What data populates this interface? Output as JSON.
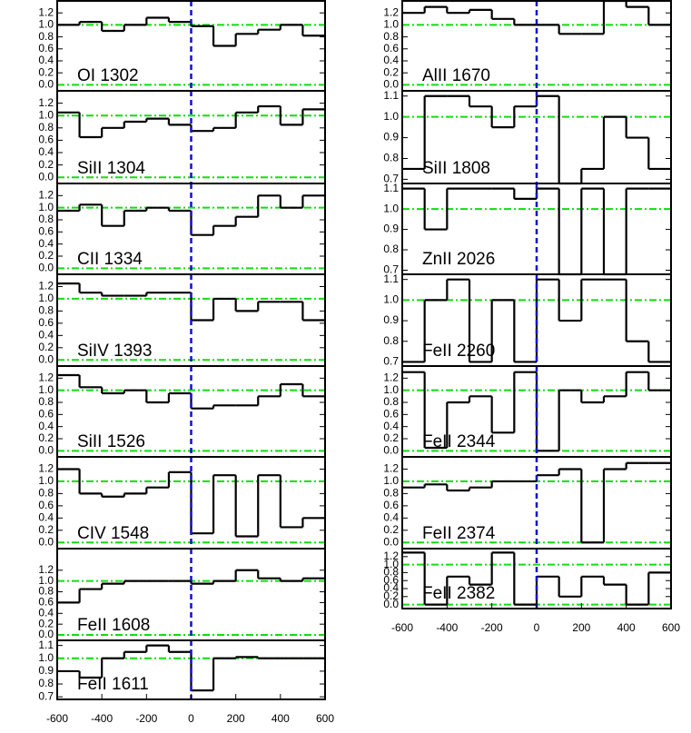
{
  "chart_data": [
    {
      "type": "step",
      "label": "OI 1302",
      "xlim": [
        -600,
        600
      ],
      "ylim": [
        -0.1,
        1.4
      ],
      "hlines": [
        0,
        1
      ],
      "vline": 0,
      "yticks": [
        {
          "value": 0,
          "label": "0.0"
        },
        0.2,
        0.4,
        0.6,
        0.8,
        {
          "value": 1,
          "label": "1.0"
        },
        1.2
      ],
      "x": [
        -550,
        -450,
        -350,
        -250,
        -150,
        -50,
        50,
        150,
        250,
        350,
        450,
        550
      ],
      "values": [
        1.0,
        1.05,
        0.9,
        1.0,
        1.12,
        1.05,
        0.98,
        0.65,
        0.85,
        0.92,
        1.0,
        0.82
      ]
    },
    {
      "type": "step",
      "label": "SiII 1304",
      "xlim": [
        -600,
        600
      ],
      "ylim": [
        -0.1,
        1.4
      ],
      "hlines": [
        0,
        1
      ],
      "vline": 0,
      "yticks": [
        {
          "value": 0,
          "label": "0.0"
        },
        0.2,
        0.4,
        0.6,
        0.8,
        {
          "value": 1,
          "label": "1.0"
        },
        1.2
      ],
      "x": [
        -550,
        -450,
        -350,
        -250,
        -150,
        -50,
        50,
        150,
        250,
        350,
        450,
        550
      ],
      "values": [
        1.05,
        0.65,
        0.8,
        0.9,
        0.95,
        0.85,
        0.75,
        0.8,
        1.05,
        1.15,
        0.85,
        1.1
      ]
    },
    {
      "type": "step",
      "label": "CII 1334",
      "xlim": [
        -600,
        600
      ],
      "ylim": [
        -0.1,
        1.4
      ],
      "hlines": [
        0,
        1
      ],
      "vline": 0,
      "yticks": [
        {
          "value": 0,
          "label": "0.0"
        },
        0.2,
        0.4,
        0.6,
        0.8,
        {
          "value": 1,
          "label": "1.0"
        },
        1.2
      ],
      "x": [
        -550,
        -450,
        -350,
        -250,
        -150,
        -50,
        50,
        150,
        250,
        350,
        450,
        550
      ],
      "values": [
        0.95,
        1.05,
        0.7,
        0.95,
        1.0,
        0.95,
        0.55,
        0.7,
        0.85,
        1.2,
        1.0,
        1.2
      ]
    },
    {
      "type": "step",
      "label": "SiIV 1393",
      "xlim": [
        -600,
        600
      ],
      "ylim": [
        -0.1,
        1.4
      ],
      "hlines": [
        0,
        1
      ],
      "vline": 0,
      "yticks": [
        {
          "value": 0,
          "label": "0.0"
        },
        0.2,
        0.4,
        0.6,
        0.8,
        {
          "value": 1,
          "label": "1.0"
        },
        1.2
      ],
      "x": [
        -550,
        -450,
        -350,
        -250,
        -150,
        -50,
        50,
        150,
        250,
        350,
        450,
        550
      ],
      "values": [
        1.25,
        1.1,
        1.05,
        1.05,
        1.1,
        1.1,
        0.65,
        1.0,
        0.8,
        0.95,
        0.95,
        0.65
      ]
    },
    {
      "type": "step",
      "label": "SiII 1526",
      "xlim": [
        -600,
        600
      ],
      "ylim": [
        -0.1,
        1.4
      ],
      "hlines": [
        0,
        1
      ],
      "vline": 0,
      "yticks": [
        {
          "value": 0,
          "label": "0.0"
        },
        0.2,
        0.4,
        0.6,
        0.8,
        {
          "value": 1,
          "label": "1.0"
        },
        1.2
      ],
      "x": [
        -550,
        -450,
        -350,
        -250,
        -150,
        -50,
        50,
        150,
        250,
        350,
        450,
        550
      ],
      "values": [
        1.25,
        1.05,
        0.95,
        1.0,
        0.8,
        0.95,
        0.7,
        0.75,
        0.75,
        0.9,
        1.1,
        0.9
      ]
    },
    {
      "type": "step",
      "label": "CIV 1548",
      "xlim": [
        -600,
        600
      ],
      "ylim": [
        -0.1,
        1.4
      ],
      "hlines": [
        0,
        1
      ],
      "vline": 0,
      "yticks": [
        {
          "value": 0,
          "label": "0.0"
        },
        0.2,
        0.4,
        0.6,
        0.8,
        {
          "value": 1,
          "label": "1.0"
        },
        1.2
      ],
      "x": [
        -550,
        -450,
        -350,
        -250,
        -150,
        -50,
        50,
        150,
        250,
        350,
        450,
        550
      ],
      "values": [
        1.2,
        0.8,
        0.75,
        0.8,
        0.9,
        1.15,
        0.15,
        1.1,
        0.1,
        1.1,
        0.25,
        0.4
      ]
    },
    {
      "type": "step",
      "label": "FeII 1608",
      "xlim": [
        -600,
        600
      ],
      "ylim": [
        -0.1,
        1.6
      ],
      "hlines": [
        0,
        1
      ],
      "vline": 0,
      "yticks": [
        {
          "value": 0,
          "label": "0.0"
        },
        0.2,
        0.4,
        0.6,
        0.8,
        {
          "value": 1,
          "label": "1.0"
        },
        1.2
      ],
      "x": [
        -550,
        -450,
        -350,
        -250,
        -150,
        -50,
        50,
        150,
        250,
        350,
        450,
        550
      ],
      "values": [
        0.6,
        0.85,
        0.95,
        1.0,
        1.0,
        1.0,
        0.95,
        1.0,
        1.2,
        1.05,
        1.0,
        1.05
      ]
    },
    {
      "type": "step",
      "label": "FeII 1611",
      "xlim": [
        -600,
        600
      ],
      "ylim": [
        0.68,
        1.14
      ],
      "hlines": [
        1
      ],
      "vline": 0,
      "yticks": [
        0.7,
        0.8,
        0.9,
        {
          "value": 1,
          "label": "1.0"
        },
        1.1
      ],
      "x": [
        -550,
        -450,
        -350,
        -250,
        -150,
        -50,
        50,
        150,
        250,
        350,
        450,
        550
      ],
      "values": [
        0.9,
        0.85,
        1.0,
        1.05,
        1.1,
        1.05,
        0.75,
        1.0,
        1.01,
        1.0,
        1.0,
        1.0
      ],
      "xticks": [
        -600,
        -400,
        -200,
        0,
        200,
        400,
        600
      ]
    },
    {
      "type": "step",
      "label": "AlII 1670",
      "xlim": [
        -600,
        600
      ],
      "ylim": [
        -0.1,
        1.4
      ],
      "hlines": [
        0,
        1
      ],
      "vline": 0,
      "yticks": [
        {
          "value": 0,
          "label": "0.0"
        },
        0.2,
        0.4,
        0.6,
        0.8,
        {
          "value": 1,
          "label": "1.0"
        },
        1.2
      ],
      "x": [
        -550,
        -450,
        -350,
        -250,
        -150,
        -50,
        50,
        150,
        250,
        350,
        450,
        550
      ],
      "values": [
        1.2,
        1.3,
        1.2,
        1.25,
        1.1,
        1.0,
        1.0,
        0.85,
        0.85,
        1.4,
        1.3,
        1.0
      ]
    },
    {
      "type": "step",
      "label": "SiII 1808",
      "xlim": [
        -600,
        600
      ],
      "ylim": [
        0.68,
        1.125
      ],
      "hlines": [
        1
      ],
      "vline": 0,
      "yticks": [
        0.7,
        0.8,
        0.9,
        {
          "value": 1,
          "label": "1.0"
        },
        1.1
      ],
      "x": [
        -550,
        -450,
        -350,
        -250,
        -150,
        -50,
        50,
        150,
        250,
        350,
        450,
        550
      ],
      "values": [
        0.75,
        1.1,
        1.1,
        1.05,
        0.95,
        1.05,
        1.1,
        0.68,
        0.75,
        1.0,
        0.9,
        0.75
      ]
    },
    {
      "type": "step",
      "label": "ZnII 2026",
      "xlim": [
        -600,
        600
      ],
      "ylim": [
        0.68,
        1.125
      ],
      "hlines": [
        1
      ],
      "vline": 0,
      "yticks": [
        0.7,
        0.8,
        0.9,
        {
          "value": 1,
          "label": "1.0"
        },
        1.1
      ],
      "x": [
        -550,
        -450,
        -350,
        -250,
        -150,
        -50,
        50,
        150,
        250,
        350,
        450,
        550
      ],
      "values": [
        1.1,
        0.9,
        1.1,
        1.1,
        1.1,
        1.05,
        1.1,
        0.68,
        1.1,
        0.68,
        1.1,
        1.1
      ]
    },
    {
      "type": "step",
      "label": "FeII 2260",
      "xlim": [
        -600,
        600
      ],
      "ylim": [
        0.68,
        1.125
      ],
      "hlines": [
        1
      ],
      "vline": 0,
      "yticks": [
        0.7,
        0.8,
        0.9,
        {
          "value": 1,
          "label": "1.0"
        },
        1.1
      ],
      "x": [
        -550,
        -450,
        -350,
        -250,
        -150,
        -50,
        50,
        150,
        250,
        350,
        450,
        550
      ],
      "values": [
        0.7,
        1.0,
        1.1,
        0.7,
        1.0,
        0.7,
        1.1,
        0.9,
        1.1,
        1.1,
        0.8,
        0.7
      ]
    },
    {
      "type": "step",
      "label": "FeII 2344",
      "xlim": [
        -600,
        600
      ],
      "ylim": [
        -0.1,
        1.4
      ],
      "hlines": [
        0,
        1
      ],
      "vline": 0,
      "yticks": [
        {
          "value": 0,
          "label": "0.0"
        },
        0.2,
        0.4,
        0.6,
        0.8,
        {
          "value": 1,
          "label": "1.0"
        },
        1.2
      ],
      "x": [
        -550,
        -450,
        -350,
        -250,
        -150,
        -50,
        50,
        150,
        250,
        350,
        450,
        550
      ],
      "values": [
        1.3,
        0.05,
        0.8,
        0.9,
        0.3,
        1.3,
        0.0,
        1.0,
        0.8,
        0.9,
        1.3,
        1.0
      ]
    },
    {
      "type": "step",
      "label": "FeII 2374",
      "xlim": [
        -600,
        600
      ],
      "ylim": [
        -0.1,
        1.4
      ],
      "hlines": [
        0,
        1
      ],
      "vline": 0,
      "yticks": [
        {
          "value": 0,
          "label": "0.0"
        },
        0.2,
        0.4,
        0.6,
        0.8,
        {
          "value": 1,
          "label": "1.0"
        },
        1.2
      ],
      "x": [
        -550,
        -450,
        -350,
        -250,
        -150,
        -50,
        50,
        150,
        250,
        350,
        450,
        550
      ],
      "values": [
        0.9,
        0.95,
        0.85,
        0.9,
        1.0,
        1.0,
        1.1,
        1.2,
        0.0,
        1.2,
        1.3,
        1.3
      ]
    },
    {
      "type": "step",
      "label": "FeII 2382",
      "xlim": [
        -600,
        600
      ],
      "ylim": [
        -0.1,
        1.4
      ],
      "hlines": [
        0,
        1
      ],
      "vline": 0,
      "yticks": [
        {
          "value": 0,
          "label": "0.0"
        },
        0.2,
        0.4,
        0.6,
        0.8,
        {
          "value": 1,
          "label": "1.0"
        },
        1.2
      ],
      "x": [
        -550,
        -450,
        -350,
        -250,
        -150,
        -50,
        50,
        150,
        250,
        350,
        450,
        550
      ],
      "values": [
        1.3,
        0.0,
        0.7,
        0.5,
        1.3,
        0.0,
        0.7,
        0.2,
        0.7,
        0.5,
        0.0,
        0.8
      ],
      "xticks": [
        -600,
        -400,
        -200,
        0,
        200,
        400,
        600
      ]
    }
  ]
}
